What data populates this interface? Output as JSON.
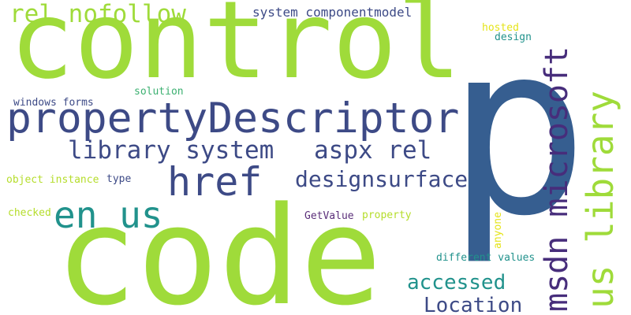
{
  "colors": {
    "background": "#ffffff",
    "lime": "#9fdb3a",
    "navy": "#3d4a86",
    "steel_blue": "#365e90",
    "teal": "#21928c",
    "dark_purple": "#472d7b",
    "purple": "#5b2f7a",
    "yellow_green": "#b5dd2b",
    "yellow": "#e5e419",
    "green": "#3cb071"
  },
  "words": {
    "control": "control",
    "p": "p",
    "code": "code",
    "propertyDescriptor": "propertyDescriptor",
    "rel_nofollow": "rel nofollow",
    "system_componentmodel": "system componentmodel",
    "hosted": "hosted",
    "design": "design",
    "library_system": "library system",
    "aspx_rel": "aspx rel",
    "href": "href",
    "designsurface": "designsurface",
    "en_us": "en us",
    "windows_forms": "windows forms",
    "solution": "solution",
    "object_instance": "object instance",
    "type": "type",
    "checked": "checked",
    "getvalue": "GetValue",
    "property": "property",
    "anyone": "anyone",
    "different_values": "different values",
    "accessed": "accessed",
    "location": "Location",
    "msdn_microsoft": "msdn microsoft",
    "us_library": "us library"
  }
}
